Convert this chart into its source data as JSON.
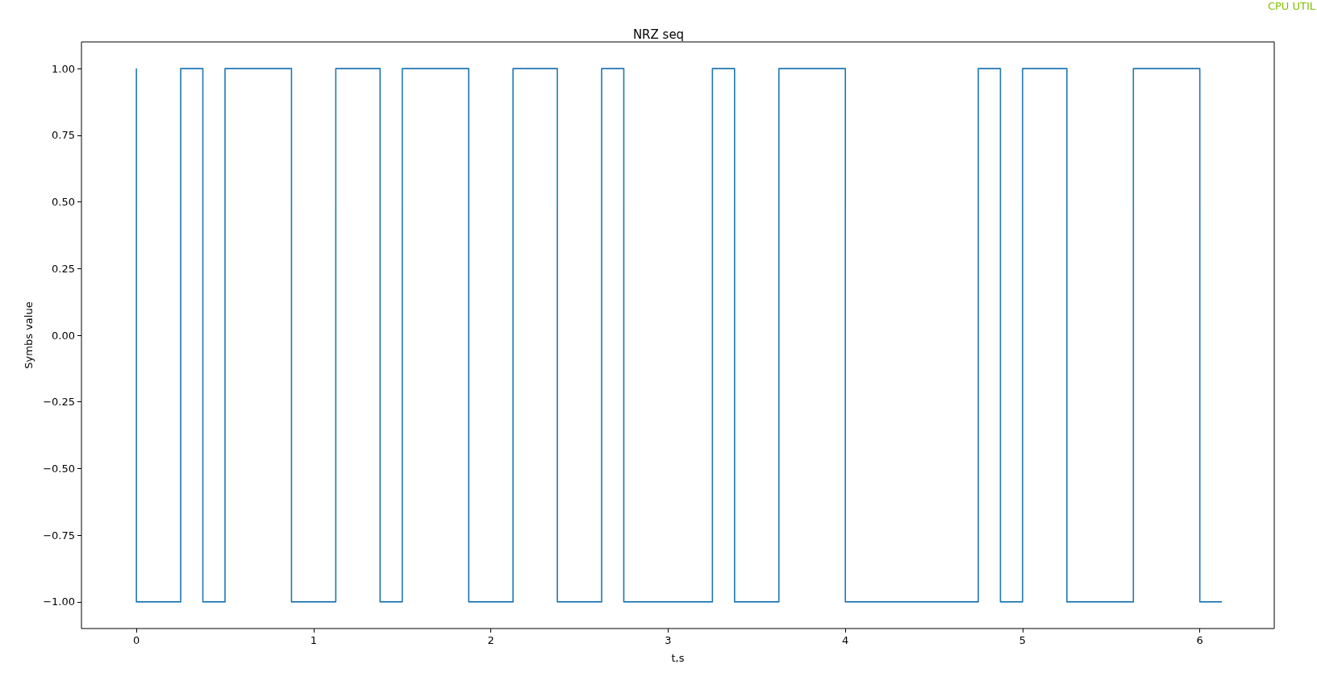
{
  "chart_data": {
    "type": "step",
    "title": "NRZ seq",
    "xlabel": "t,s",
    "ylabel": "Symbs value",
    "annotations": [
      "CPU UTIL"
    ],
    "x": [
      0,
      0.25,
      0.375,
      0.5,
      0.875,
      1.125,
      1.375,
      1.5,
      1.875,
      2.125,
      2.375,
      2.625,
      2.75,
      3.25,
      3.375,
      3.625,
      4.0,
      4.75,
      4.875,
      5.0,
      5.25,
      5.625,
      6.0,
      6.125
    ],
    "series": [
      {
        "color": "#1f77b4",
        "values": [
          1,
          -1,
          1,
          -1,
          1,
          -1,
          1,
          -1,
          1,
          -1,
          1,
          -1,
          1,
          -1,
          1,
          -1,
          1,
          -1,
          1,
          -1,
          1,
          -1,
          1,
          -1
        ]
      }
    ],
    "xlim": [
      -0.31,
      6.42
    ],
    "ylim": [
      -1.1,
      1.1
    ],
    "xticks": [
      0,
      1,
      2,
      3,
      4,
      5,
      6
    ],
    "yticks": [
      {
        "value": -1,
        "label": "−1.00"
      },
      {
        "value": -0.75,
        "label": "−0.75"
      },
      {
        "value": -0.5,
        "label": "−0.50"
      },
      {
        "value": -0.25,
        "label": "−0.25"
      },
      {
        "value": 0,
        "label": "0.00"
      },
      {
        "value": 0.25,
        "label": "0.25"
      },
      {
        "value": 0.5,
        "label": "0.50"
      },
      {
        "value": 0.75,
        "label": "0.75"
      },
      {
        "value": 1,
        "label": "1.00"
      }
    ],
    "line_style": "solid"
  }
}
